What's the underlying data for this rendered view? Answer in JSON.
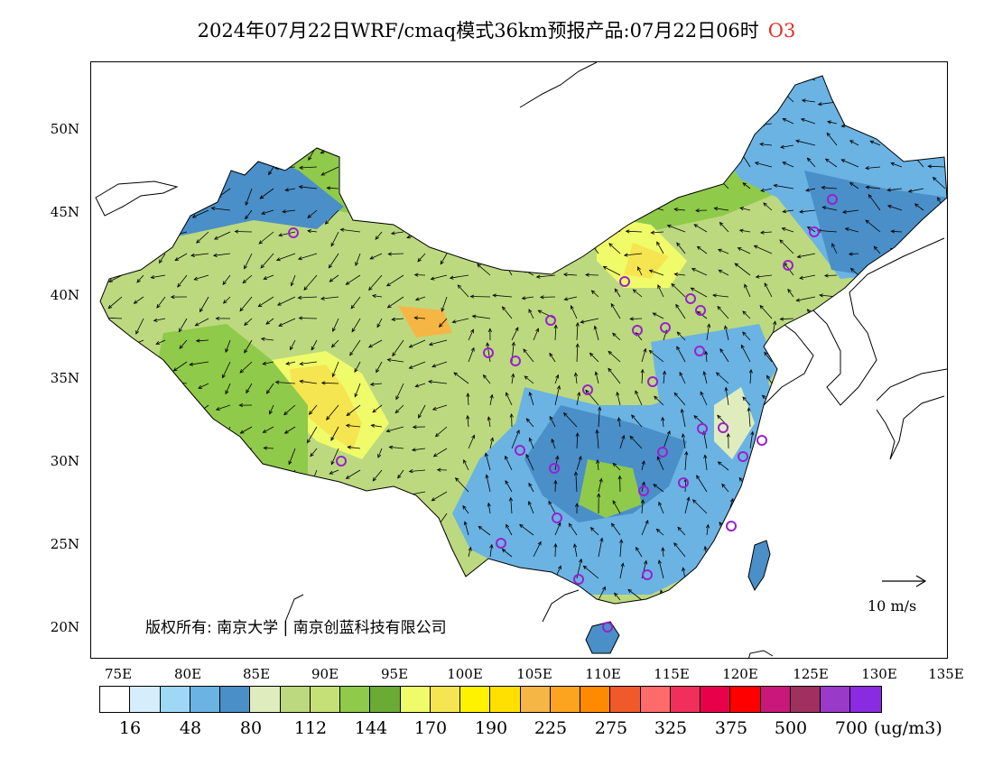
{
  "title": {
    "main": "2024年07月22日WRF/cmaq模式36km预报产品:07月22日06时",
    "pollutant": "O3"
  },
  "axes": {
    "lat_labels": [
      "50N",
      "45N",
      "40N",
      "35N",
      "30N",
      "25N",
      "20N"
    ],
    "lon_labels": [
      "75E",
      "80E",
      "85E",
      "90E",
      "95E",
      "100E",
      "105E",
      "110E",
      "115E",
      "120E",
      "125E",
      "130E",
      "135E"
    ]
  },
  "copyright": "版权所有: 南京大学 | 南京创蓝科技有限公司",
  "wind_scale": {
    "label": "10 m/s"
  },
  "legend": {
    "colors": [
      "#ffffff",
      "#d4eefb",
      "#9ed8f5",
      "#6bb3e3",
      "#4a8fc8",
      "#dfedbe",
      "#bcd97f",
      "#c4e077",
      "#8fca4a",
      "#6aaa35",
      "#f0fb6a",
      "#f5e550",
      "#fff200",
      "#ffe000",
      "#f5b645",
      "#fca420",
      "#ff8a00",
      "#f05a2a",
      "#ff6b6b",
      "#f0305a",
      "#e8004a",
      "#ff0000",
      "#c8187a",
      "#a03060",
      "#9a3ac8",
      "#8a2be2"
    ],
    "tick_labels": [
      "16",
      "48",
      "80",
      "112",
      "144",
      "170",
      "190",
      "225",
      "275",
      "325",
      "375",
      "500",
      "700"
    ],
    "unit": "(ug/m3)"
  }
}
